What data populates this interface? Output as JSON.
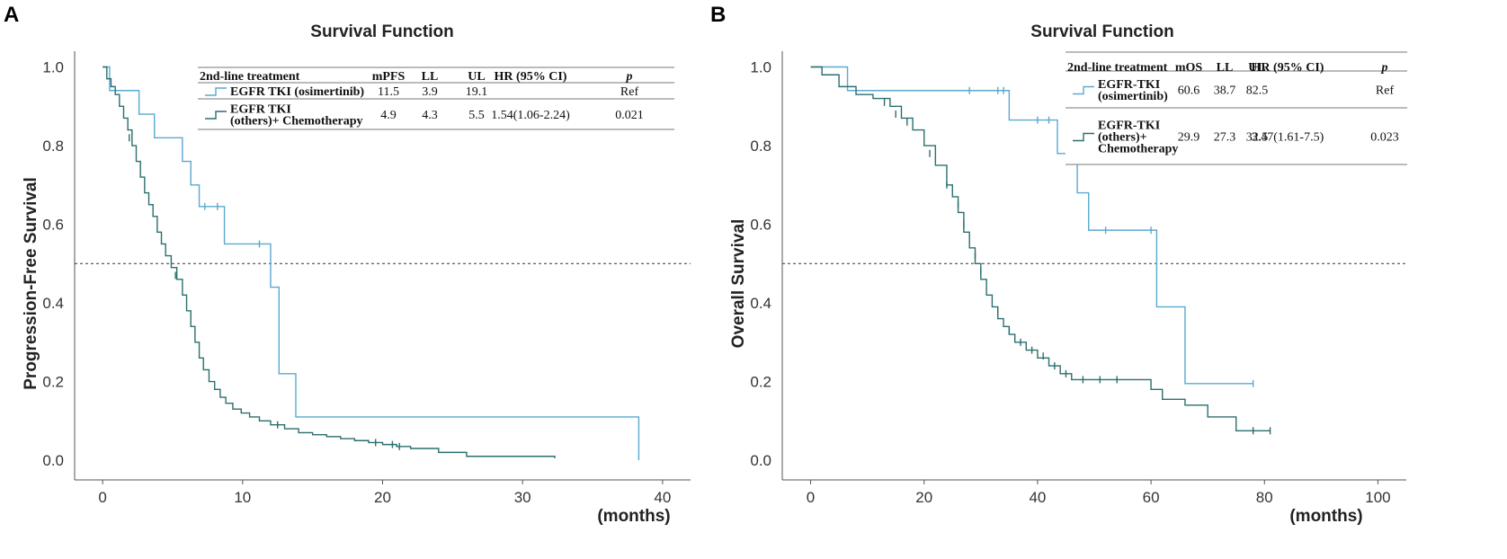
{
  "panel_labels": [
    "A",
    "B"
  ],
  "colors": {
    "osimertinib": "#5ba9cf",
    "others": "#2b6f6e",
    "axis": "#555555",
    "ref_line": "#333333"
  },
  "x_axis_unit": "(months)",
  "chart_data": [
    {
      "type": "line",
      "title": "Survival Function",
      "xlabel": "(months)",
      "ylabel": "Progression-Free Survival",
      "xlim": [
        -2,
        42
      ],
      "ylim": [
        -0.05,
        1.04
      ],
      "xticks": [
        0,
        10,
        20,
        30,
        40
      ],
      "yticks": [
        0.0,
        0.2,
        0.4,
        0.6,
        0.8,
        1.0
      ],
      "reference_line_y": 0.5,
      "legend": {
        "headers": [
          "2nd-line treatment",
          "mPFS",
          "LL",
          "UL",
          "HR (95% CI)",
          "p"
        ],
        "rows": [
          {
            "label": [
              "EGFR TKI (osimertinib)"
            ],
            "values": [
              "11.5",
              "3.9",
              "19.1",
              "",
              "Ref"
            ]
          },
          {
            "label": [
              "EGFR TKI",
              "(others)+ Chemotherapy"
            ],
            "values": [
              "4.9",
              "4.3",
              "5.5",
              "1.54(1.06-2.24)",
              "0.021"
            ]
          }
        ]
      },
      "series": [
        {
          "name": "EGFR TKI (osimertinib)",
          "color": "#5ba9cf",
          "x": [
            0,
            0.5,
            0.5,
            1,
            1,
            2.6,
            2.6,
            3.7,
            3.7,
            5.7,
            5.7,
            6.3,
            6.3,
            6.9,
            6.9,
            8.7,
            8.7,
            11.5,
            11.5,
            12.0,
            12.0,
            12.6,
            12.6,
            13.8,
            13.8,
            38.3,
            38.3
          ],
          "y": [
            1.0,
            1.0,
            0.94,
            0.94,
            0.94,
            0.94,
            0.88,
            0.88,
            0.82,
            0.82,
            0.76,
            0.76,
            0.7,
            0.7,
            0.645,
            0.645,
            0.55,
            0.55,
            0.55,
            0.55,
            0.44,
            0.44,
            0.22,
            0.22,
            0.11,
            0.11,
            0.0
          ],
          "censor_x": [
            7.3,
            8.2,
            11.2
          ],
          "censor_y": [
            0.645,
            0.645,
            0.55
          ]
        },
        {
          "name": "EGFR TKI (others)+ Chemotherapy",
          "color": "#2b6f6e",
          "x": [
            0,
            0.3,
            0.6,
            0.9,
            1.2,
            1.5,
            1.8,
            2.1,
            2.4,
            2.7,
            3.0,
            3.3,
            3.6,
            3.9,
            4.2,
            4.5,
            4.9,
            5.3,
            5.7,
            6.0,
            6.3,
            6.6,
            6.9,
            7.2,
            7.6,
            8.0,
            8.4,
            8.8,
            9.3,
            9.9,
            10.5,
            11.2,
            12.0,
            13.0,
            14.0,
            15.0,
            16.0,
            17.0,
            18.0,
            19.0,
            20.0,
            21.0,
            22.0,
            24.0,
            26.0,
            28.0,
            30.0,
            32.3
          ],
          "y": [
            1.0,
            0.97,
            0.95,
            0.93,
            0.9,
            0.87,
            0.84,
            0.8,
            0.76,
            0.72,
            0.68,
            0.65,
            0.62,
            0.58,
            0.55,
            0.52,
            0.49,
            0.46,
            0.42,
            0.38,
            0.34,
            0.3,
            0.26,
            0.23,
            0.2,
            0.18,
            0.16,
            0.145,
            0.13,
            0.12,
            0.11,
            0.1,
            0.09,
            0.08,
            0.07,
            0.065,
            0.06,
            0.055,
            0.05,
            0.045,
            0.04,
            0.035,
            0.03,
            0.02,
            0.01,
            0.01,
            0.01,
            0.005
          ],
          "censor_x": [
            1.9,
            5.2,
            12.5,
            19.5,
            20.7,
            21.2
          ],
          "censor_y": [
            0.82,
            0.47,
            0.09,
            0.045,
            0.04,
            0.035
          ]
        }
      ]
    },
    {
      "type": "line",
      "title": "Survival Function",
      "xlabel": "(months)",
      "ylabel": "Overall Survival",
      "xlim": [
        -5,
        105
      ],
      "ylim": [
        -0.05,
        1.04
      ],
      "xticks": [
        0,
        20,
        40,
        60,
        80,
        100
      ],
      "yticks": [
        0.0,
        0.2,
        0.4,
        0.6,
        0.8,
        1.0
      ],
      "reference_line_y": 0.5,
      "legend": {
        "headers": [
          "2nd-line treatment",
          "mOS",
          "LL",
          "UL",
          "HR (95% CI)",
          "p"
        ],
        "rows": [
          {
            "label": [
              "EGFR-TKI",
              "(osimertinib)"
            ],
            "values": [
              "60.6",
              "38.7",
              "82.5",
              "",
              "Ref"
            ]
          },
          {
            "label": [
              "EGFR-TKI",
              "(others)+",
              "Chemotherapy"
            ],
            "values": [
              "29.9",
              "27.3",
              "32.5",
              "3.47(1.61-7.5)",
              "0.023"
            ]
          }
        ]
      },
      "series": [
        {
          "name": "EGFR-TKI (osimertinib)",
          "color": "#5ba9cf",
          "x": [
            0,
            6.5,
            6.5,
            35,
            35,
            43.5,
            43.5,
            47,
            47,
            49,
            49,
            61,
            61,
            66,
            66,
            78
          ],
          "y": [
            1.0,
            1.0,
            0.94,
            0.94,
            0.865,
            0.865,
            0.78,
            0.78,
            0.68,
            0.68,
            0.585,
            0.585,
            0.39,
            0.39,
            0.195,
            0.195
          ],
          "censor_x": [
            28,
            33,
            34,
            40,
            42,
            46.5,
            52,
            60,
            78
          ],
          "censor_y": [
            0.94,
            0.94,
            0.94,
            0.865,
            0.865,
            0.78,
            0.585,
            0.585,
            0.195
          ]
        },
        {
          "name": "EGFR-TKI (others)+ Chemotherapy",
          "color": "#2b6f6e",
          "x": [
            0,
            2,
            5,
            8,
            11,
            14,
            16,
            18,
            20,
            22,
            24,
            25,
            26,
            27,
            28,
            29,
            30,
            31,
            32,
            33,
            34,
            35,
            36,
            38,
            40,
            42,
            44,
            46,
            48,
            50,
            55,
            60,
            62,
            66,
            70,
            75,
            80,
            81
          ],
          "y": [
            1.0,
            0.98,
            0.95,
            0.93,
            0.92,
            0.9,
            0.87,
            0.84,
            0.8,
            0.75,
            0.7,
            0.67,
            0.63,
            0.58,
            0.54,
            0.5,
            0.46,
            0.42,
            0.39,
            0.36,
            0.34,
            0.32,
            0.3,
            0.28,
            0.26,
            0.24,
            0.22,
            0.205,
            0.205,
            0.205,
            0.205,
            0.18,
            0.155,
            0.14,
            0.11,
            0.075,
            0.075,
            0.075
          ],
          "censor_x": [
            13,
            15,
            17,
            21,
            24,
            26,
            27,
            29,
            30,
            33,
            35,
            37,
            39,
            41,
            43,
            45,
            48,
            51,
            54,
            78,
            81
          ],
          "censor_y": [
            0.91,
            0.88,
            0.86,
            0.78,
            0.7,
            0.65,
            0.6,
            0.52,
            0.48,
            0.38,
            0.33,
            0.3,
            0.28,
            0.265,
            0.24,
            0.22,
            0.205,
            0.205,
            0.205,
            0.075,
            0.075
          ]
        }
      ]
    }
  ]
}
